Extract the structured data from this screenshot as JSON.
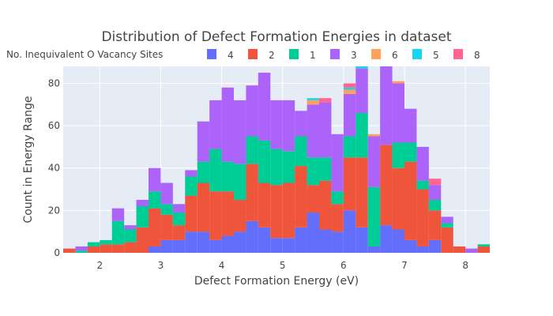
{
  "chart_data": {
    "type": "bar",
    "barmode": "stack",
    "title": "Distribution of Defect Formation Energies in dataset",
    "xlabel": "Defect Formation Energy (eV)",
    "ylabel": "Count in Energy Range",
    "xlim": [
      1.4,
      8.4
    ],
    "ylim": [
      0,
      88
    ],
    "bin_width": 0.2,
    "x_ticks": [
      2,
      3,
      4,
      5,
      6,
      7,
      8
    ],
    "y_ticks": [
      0,
      20,
      40,
      60,
      80
    ],
    "legend_title": "No. Inequivalent O Vacancy Sites",
    "legend_position": "top",
    "grid": true,
    "x": [
      1.5,
      1.7,
      1.9,
      2.1,
      2.3,
      2.5,
      2.7,
      2.9,
      3.1,
      3.3,
      3.5,
      3.7,
      3.9,
      4.1,
      4.3,
      4.5,
      4.7,
      4.9,
      5.1,
      5.3,
      5.5,
      5.7,
      5.9,
      6.1,
      6.3,
      6.5,
      6.7,
      6.9,
      7.1,
      7.3,
      7.5,
      7.7,
      7.9,
      8.1,
      8.3
    ],
    "series": [
      {
        "name": "4",
        "color": "#636efa",
        "values": [
          0,
          0,
          0,
          0,
          0,
          0,
          0,
          3,
          6,
          6,
          10,
          10,
          6,
          8,
          10,
          15,
          12,
          7,
          7,
          12,
          19,
          11,
          10,
          20,
          12,
          3,
          13,
          11,
          6,
          3,
          6,
          0,
          0,
          0,
          0
        ]
      },
      {
        "name": "2",
        "color": "#ef553b",
        "values": [
          2,
          0,
          3,
          4,
          4,
          5,
          12,
          18,
          12,
          7,
          17,
          23,
          23,
          21,
          15,
          27,
          21,
          25,
          26,
          29,
          13,
          23,
          13,
          25,
          33,
          0,
          38,
          29,
          37,
          27,
          14,
          12,
          3,
          0,
          3
        ]
      },
      {
        "name": "1",
        "color": "#00cc96",
        "values": [
          0,
          1,
          2,
          2,
          11,
          6,
          10,
          8,
          5,
          6,
          9,
          10,
          20,
          14,
          17,
          13,
          20,
          17,
          15,
          14,
          13,
          11,
          6,
          10,
          21,
          28,
          0,
          12,
          9,
          4,
          5,
          2,
          0,
          0,
          1
        ]
      },
      {
        "name": "3",
        "color": "#ab63fa",
        "values": [
          0,
          2,
          0,
          0,
          6,
          2,
          3,
          11,
          10,
          4,
          3,
          19,
          23,
          35,
          30,
          24,
          32,
          23,
          24,
          12,
          25,
          26,
          27,
          20,
          21,
          24,
          37,
          28,
          16,
          16,
          7,
          3,
          0,
          2,
          0
        ]
      },
      {
        "name": "6",
        "color": "#ffa15a",
        "values": [
          0,
          0,
          0,
          0,
          0,
          0,
          0,
          0,
          0,
          0,
          0,
          0,
          0,
          0,
          0,
          0,
          0,
          0,
          0,
          0,
          2,
          0,
          0,
          2,
          0,
          1,
          0,
          1,
          0,
          0,
          0,
          0,
          0,
          0,
          0
        ]
      },
      {
        "name": "5",
        "color": "#19d3f3",
        "values": [
          0,
          0,
          0,
          0,
          0,
          0,
          0,
          0,
          0,
          0,
          0,
          0,
          0,
          0,
          0,
          0,
          0,
          0,
          0,
          0,
          1,
          0,
          0,
          1,
          3,
          0,
          0,
          0,
          0,
          0,
          0,
          0,
          0,
          0,
          0
        ]
      },
      {
        "name": "8",
        "color": "#ff6692",
        "values": [
          0,
          0,
          0,
          0,
          0,
          0,
          0,
          0,
          0,
          0,
          0,
          0,
          0,
          0,
          0,
          0,
          0,
          0,
          0,
          0,
          0,
          2,
          0,
          2,
          0,
          0,
          0,
          0,
          0,
          0,
          3,
          0,
          0,
          0,
          0
        ]
      }
    ]
  }
}
